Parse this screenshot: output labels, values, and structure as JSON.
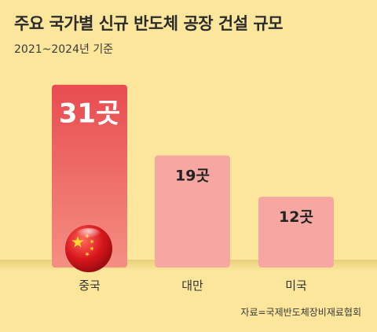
{
  "header": {
    "title": "주요 국가별 신규 반도체 공장 건설 규모",
    "subtitle": "2021~2024년 기준"
  },
  "footer": {
    "source": "자료=국제반도체장비재료협회"
  },
  "colors": {
    "background": "#fbe69c",
    "lead_bar": "#ee5a5a",
    "other_bar": "#f6a7a2",
    "baseline": "#e3c76c"
  },
  "icons": {
    "china_marker": "china-flag-ball-icon"
  },
  "chart_data": {
    "type": "bar",
    "categories": [
      "중국",
      "대만",
      "미국"
    ],
    "values": [
      31,
      19,
      12
    ],
    "value_labels": [
      "31곳",
      "19곳",
      "12곳"
    ],
    "title": "주요 국가별 신규 반도체 공장 건설 규모",
    "subtitle": "2021~2024년 기준",
    "xlabel": "",
    "ylabel": "",
    "ylim": [
      0,
      33
    ],
    "grid": false,
    "legend": "none"
  }
}
